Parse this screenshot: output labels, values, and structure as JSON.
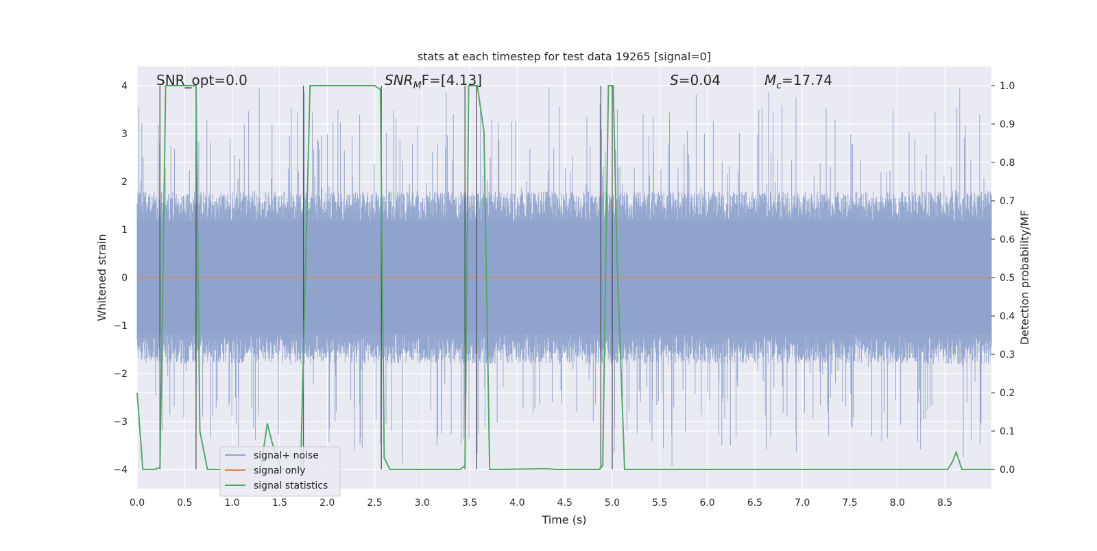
{
  "chart_data": {
    "type": "line",
    "title": "stats at each timestep for test data 19265 [signal=0]",
    "xlabel": "Time (s)",
    "ylabel_left": "Whitened strain",
    "ylabel_right": "Detection probability/MF",
    "xlim": [
      0.0,
      8.99
    ],
    "ylim_left": [
      -4.4,
      4.4
    ],
    "ylim_right": [
      -0.05,
      1.05
    ],
    "x_ticks": [
      "0.0",
      "0.5",
      "1.0",
      "1.5",
      "2.0",
      "2.5",
      "3.0",
      "3.5",
      "4.0",
      "4.5",
      "5.0",
      "5.5",
      "6.0",
      "6.5",
      "7.0",
      "7.5",
      "8.0",
      "8.5"
    ],
    "x_tick_values": [
      0.0,
      0.5,
      1.0,
      1.5,
      2.0,
      2.5,
      3.0,
      3.5,
      4.0,
      4.5,
      5.0,
      5.5,
      6.0,
      6.5,
      7.0,
      7.5,
      8.0,
      8.5
    ],
    "y_ticks_left": [
      "−4",
      "−3",
      "−2",
      "−1",
      "0",
      "1",
      "2",
      "3",
      "4"
    ],
    "y_tick_values_left": [
      -4,
      -3,
      -2,
      -1,
      0,
      1,
      2,
      3,
      4
    ],
    "y_ticks_right": [
      "0.0",
      "0.1",
      "0.2",
      "0.3",
      "0.4",
      "0.5",
      "0.6",
      "0.7",
      "0.8",
      "0.9",
      "1.0"
    ],
    "y_tick_values_right": [
      0.0,
      0.1,
      0.2,
      0.3,
      0.4,
      0.5,
      0.6,
      0.7,
      0.8,
      0.9,
      1.0
    ],
    "grid": true,
    "legend_position": "lower-left",
    "annotations": {
      "snr_opt": "SNR_opt=0.0",
      "snr_mf_base": "SNR",
      "snr_mf_sub": "M",
      "snr_mf_rest": "F=[4.13]",
      "s_label": "S",
      "s_value": "=0.04",
      "mc_label": "M",
      "mc_sub": "c",
      "mc_value": "=17.74"
    },
    "series": [
      {
        "name": "signal+ noise",
        "axis": "left",
        "color": "#8fa3cc",
        "style": "dense noise, approx. ±1.8 band, spikes up to ±4",
        "envelope": {
          "x": [
            0.0,
            8.99
          ],
          "band": 1.8,
          "peak": 4.0
        }
      },
      {
        "name": "signal only",
        "axis": "left",
        "color": "#dd8452",
        "values_constant": 0.0
      },
      {
        "name": "signal statistics",
        "axis": "right",
        "color": "#55a868",
        "x": [
          0.0,
          0.06,
          0.18,
          0.24,
          0.26,
          0.3,
          0.62,
          0.66,
          0.74,
          0.82,
          1.3,
          1.37,
          1.42,
          1.52,
          1.6,
          1.72,
          1.82,
          2.5,
          2.56,
          2.6,
          2.66,
          2.72,
          3.4,
          3.45,
          3.49,
          3.53,
          3.58,
          3.65,
          3.71,
          3.8,
          4.3,
          4.4,
          4.86,
          4.9,
          4.96,
          5.01,
          5.05,
          5.13,
          5.25,
          7.0,
          8.53,
          8.58,
          8.62,
          8.68,
          8.99
        ],
        "values": [
          0.2,
          0.0,
          0.0,
          0.005,
          0.3,
          1.0,
          1.0,
          0.1,
          0.0,
          0.0,
          0.0,
          0.12,
          0.07,
          0.0,
          0.0,
          0.0,
          1.0,
          1.0,
          0.99,
          0.03,
          0.0,
          0.0,
          0.0,
          0.01,
          1.0,
          1.0,
          1.0,
          0.88,
          0.0,
          0.0,
          0.002,
          0.0,
          0.0,
          0.01,
          1.0,
          1.0,
          0.55,
          0.0,
          0.0,
          0.0,
          0.0,
          0.02,
          0.045,
          0.0,
          0.0
        ]
      }
    ],
    "vertical_markers": [
      0.24,
      0.62,
      1.75,
      2.57,
      3.45,
      3.57,
      4.88,
      5.0
    ]
  }
}
